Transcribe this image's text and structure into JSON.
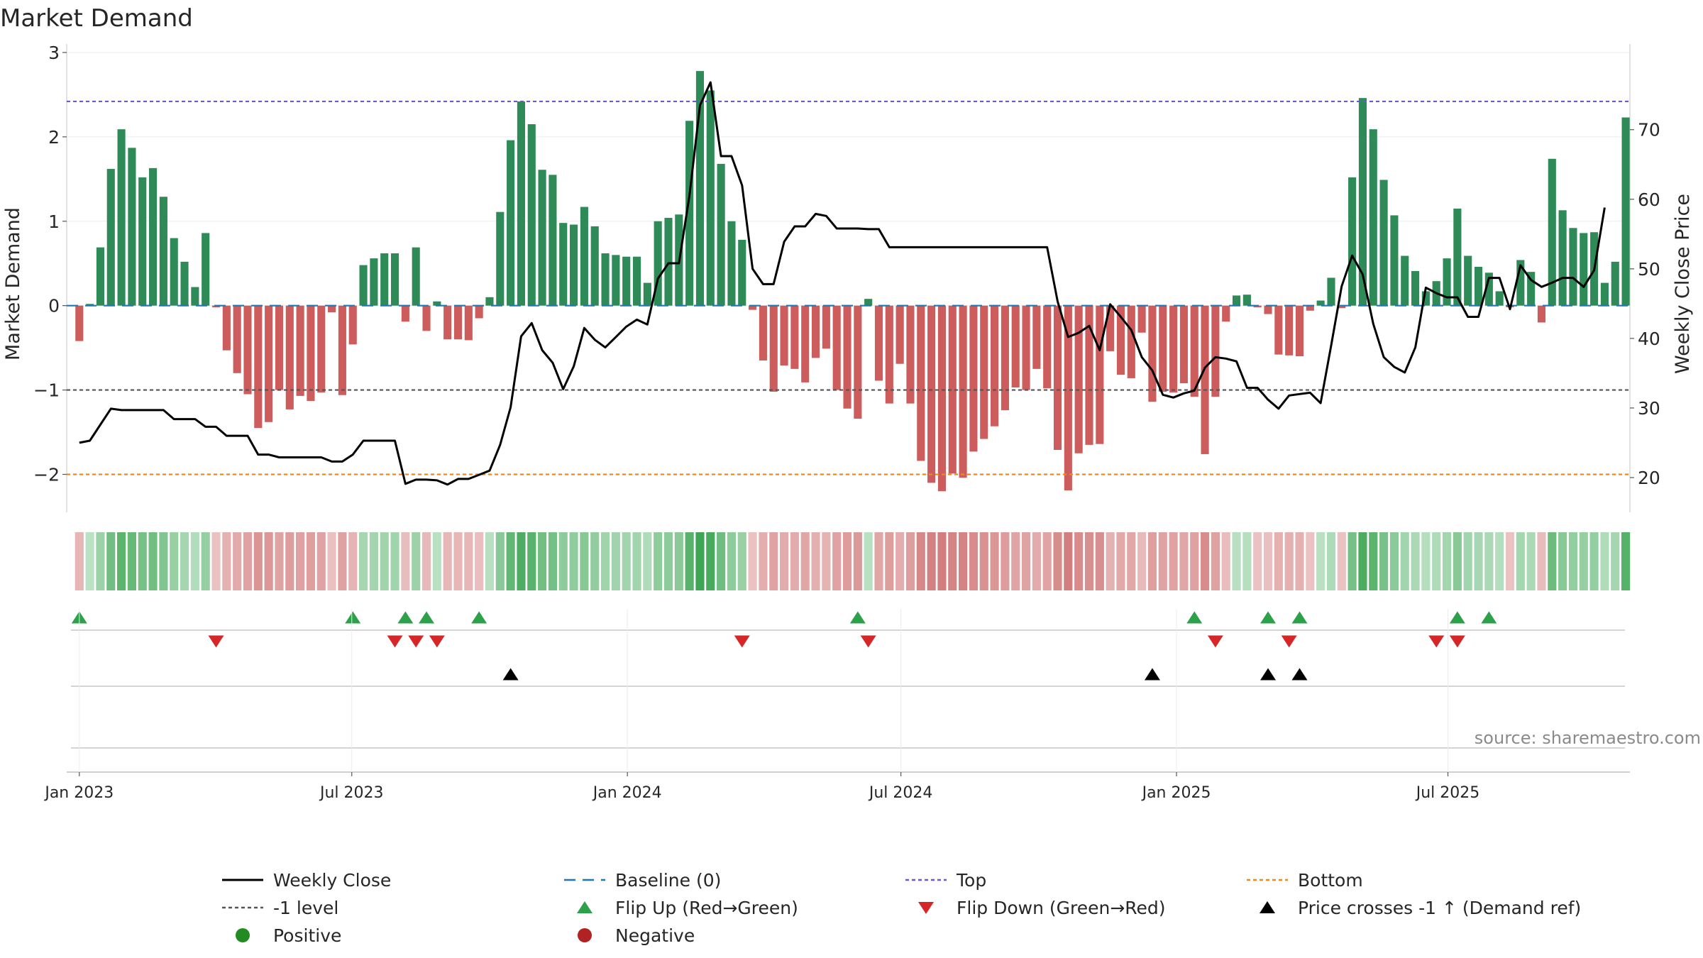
{
  "chart_data": {
    "type": "bar",
    "title": "Market Demand",
    "ylabel": "Market Demand",
    "y2label": "Weekly Close Price",
    "source": "source: sharemaestro.com",
    "ylim": [
      -2.45,
      3.05
    ],
    "y2lim": [
      15,
      81.7
    ],
    "yticks": [
      -2,
      -1,
      0,
      1,
      2,
      3
    ],
    "ytick_labels": [
      "−2",
      "−1",
      "0",
      "1",
      "2",
      "3"
    ],
    "y2ticks": [
      20,
      30,
      40,
      50,
      60,
      70
    ],
    "y2tick_labels": [
      "20",
      "30",
      "40",
      "50",
      "60",
      "70"
    ],
    "xlim_weeks": [
      -1.2,
      147.4
    ],
    "xticks": [
      {
        "label": "Jan 2023",
        "week": 0
      },
      {
        "label": "Jul 2023",
        "week": 25.9
      },
      {
        "label": "Jan 2024",
        "week": 52.1
      },
      {
        "label": "Jul 2024",
        "week": 78.1
      },
      {
        "label": "Jan 2025",
        "week": 104.3
      },
      {
        "label": "Jul 2025",
        "week": 130.1
      }
    ],
    "start_date": "2023-01-02",
    "reference_lines": {
      "top": 2.42,
      "minus_one": -1,
      "bottom": -2,
      "baseline": 0
    },
    "series": [
      {
        "name": "Market Demand",
        "values": [
          -0.42,
          0.02,
          0.69,
          1.62,
          2.09,
          1.87,
          1.52,
          1.63,
          1.29,
          0.8,
          0.52,
          0.22,
          0.86,
          -0.02,
          -0.53,
          -0.8,
          -1.05,
          -1.45,
          -1.38,
          -1.0,
          -1.23,
          -1.07,
          -1.13,
          -1.03,
          -0.08,
          -1.06,
          -0.46,
          0.48,
          0.56,
          0.62,
          0.62,
          -0.19,
          0.69,
          -0.3,
          0.05,
          -0.4,
          -0.4,
          -0.41,
          -0.15,
          0.1,
          1.11,
          1.96,
          2.42,
          2.15,
          1.61,
          1.55,
          0.98,
          0.96,
          1.17,
          0.94,
          0.62,
          0.6,
          0.58,
          0.58,
          0.27,
          1.0,
          1.04,
          1.08,
          2.19,
          2.78,
          2.55,
          1.68,
          1.0,
          0.78,
          -0.05,
          -0.65,
          -1.02,
          -0.71,
          -0.75,
          -0.91,
          -0.62,
          -0.51,
          -1.0,
          -1.22,
          -1.34,
          0.08,
          -0.89,
          -1.16,
          -0.69,
          -1.16,
          -1.84,
          -2.1,
          -2.2,
          -1.99,
          -2.04,
          -1.73,
          -1.58,
          -1.43,
          -1.24,
          -0.97,
          -1.0,
          -0.75,
          -0.98,
          -1.71,
          -2.19,
          -1.75,
          -1.65,
          -1.64,
          -0.54,
          -0.82,
          -0.86,
          -0.32,
          -1.14,
          -1.02,
          -1.03,
          -0.92,
          -1.08,
          -1.76,
          -1.08,
          -0.19,
          0.12,
          0.13,
          -0.02,
          -0.1,
          -0.58,
          -0.59,
          -0.6,
          -0.06,
          0.06,
          0.33,
          -0.03,
          1.52,
          2.46,
          2.09,
          1.49,
          1.07,
          0.59,
          0.41,
          0.17,
          0.29,
          0.56,
          1.15,
          0.59,
          0.46,
          0.39,
          0.17,
          -0.02,
          0.54,
          0.4,
          -0.2,
          1.74,
          1.13,
          0.92,
          0.86,
          0.87,
          0.27,
          0.52,
          2.23
        ]
      },
      {
        "name": "Weekly Close",
        "values": [
          25.0,
          25.3,
          27.6,
          29.9,
          29.7,
          29.7,
          29.7,
          29.7,
          29.7,
          28.4,
          28.4,
          28.4,
          27.3,
          27.3,
          26.0,
          26.0,
          26.0,
          23.3,
          23.3,
          22.9,
          22.9,
          22.9,
          22.9,
          22.9,
          22.3,
          22.3,
          23.3,
          25.3,
          25.3,
          25.3,
          25.3,
          19.1,
          19.7,
          19.7,
          19.6,
          19.0,
          19.8,
          19.8,
          20.4,
          21.0,
          24.7,
          30.1,
          40.3,
          42.2,
          38.3,
          36.5,
          32.7,
          36.0,
          41.5,
          39.8,
          38.7,
          40.2,
          41.7,
          42.7,
          42.0,
          48.6,
          50.8,
          50.8,
          60.5,
          73.5,
          76.8,
          66.2,
          66.2,
          62.0,
          50.0,
          47.8,
          47.8,
          53.9,
          56.1,
          56.1,
          57.9,
          57.6,
          55.8,
          55.8,
          55.8,
          55.7,
          55.7,
          53.1,
          53.1,
          53.1,
          53.1,
          53.1,
          53.1,
          53.1,
          53.1,
          53.1,
          53.1,
          53.1,
          53.1,
          53.1,
          53.1,
          53.1,
          53.1,
          45.3,
          40.2,
          40.8,
          41.8,
          38.3,
          44.9,
          43.1,
          41.2,
          37.3,
          35.4,
          31.9,
          31.5,
          32.1,
          32.5,
          35.8,
          37.3,
          37.1,
          36.7,
          32.9,
          32.9,
          31.2,
          29.9,
          31.8,
          32.0,
          32.2,
          30.7,
          39.0,
          47.5,
          51.9,
          49.2,
          42.1,
          37.3,
          35.9,
          35.1,
          38.7,
          47.3,
          46.5,
          45.9,
          45.9,
          43.1,
          43.1,
          48.7,
          48.7,
          44.2,
          50.5,
          48.4,
          47.4,
          48.0,
          48.7,
          48.7,
          47.4,
          49.8,
          58.8
        ]
      }
    ],
    "signals": {
      "flip_up_weeks": [
        0,
        26,
        31,
        33,
        38,
        74,
        106,
        113,
        116,
        131,
        134
      ],
      "flip_down_weeks": [
        13,
        30,
        32,
        34,
        63,
        75,
        108,
        115,
        129,
        131
      ],
      "price_cross_weeks": [
        41,
        102,
        113,
        116
      ]
    },
    "legend": [
      {
        "label": "Weekly Close",
        "marker": "solid-line",
        "color": "#000000"
      },
      {
        "label": "Baseline (0)",
        "marker": "dashed-line",
        "color": "#1f77b4"
      },
      {
        "label": "Top",
        "marker": "dotted-line",
        "color": "#6a5acd"
      },
      {
        "label": "Bottom",
        "marker": "dotted-line",
        "color": "#ee8a1a"
      },
      {
        "label": "-1 level",
        "marker": "dotted-line",
        "color": "#555555"
      },
      {
        "label": "Flip Up (Red→Green)",
        "marker": "triangle-up",
        "color": "#2ca14a"
      },
      {
        "label": "Flip Down (Green→Red)",
        "marker": "triangle-down",
        "color": "#d62728"
      },
      {
        "label": "Price crosses -1 ↑ (Demand ref)",
        "marker": "triangle-up",
        "color": "#000000"
      },
      {
        "label": "Positive",
        "marker": "dot",
        "color": "#228b22"
      },
      {
        "label": "Negative",
        "marker": "dot",
        "color": "#b22222"
      }
    ],
    "legend_placement": "bottom",
    "colors": {
      "positive_bar": "#2e8b57",
      "negative_bar": "#cd5c5c",
      "price_line": "#000000",
      "flip_up": "#2ca14a",
      "flip_down": "#d62728",
      "price_cross": "#000000"
    },
    "grid": true
  }
}
